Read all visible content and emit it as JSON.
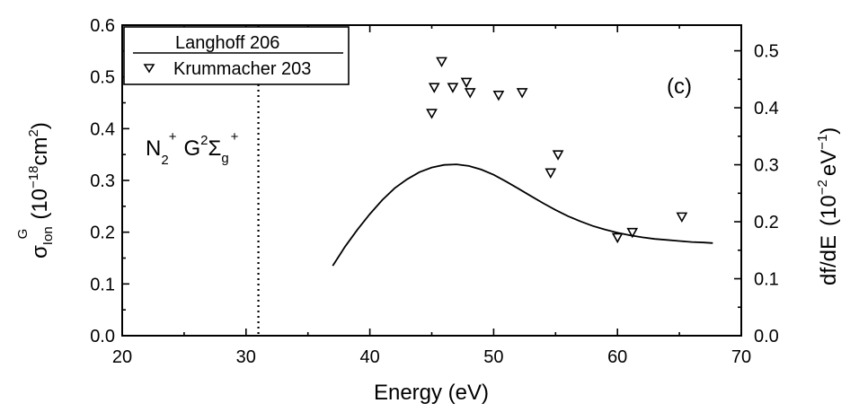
{
  "chart_data": {
    "type": "line",
    "panel_label": "(c)",
    "annotation": {
      "species": "N",
      "species_sub": "2",
      "species_sup": "+",
      "state": "G",
      "state_sup": "2",
      "state_sym": "Σ",
      "state_sub": "g",
      "state_sup2": "+"
    },
    "xlabel": "Energy (eV)",
    "ylabel_left": {
      "sigma": "σ",
      "sigma_sub": "Ion",
      "sigma_sup": "G",
      "units_pre": "(10",
      "units_exp": "−18",
      "units_mid": "cm",
      "units_exp2": "2",
      "units_post": ")"
    },
    "ylabel_right": {
      "text": "df/dE",
      "units_pre": "(10",
      "units_exp": "−2",
      "units_mid": "eV",
      "units_exp2": "−1",
      "units_post": ")"
    },
    "xlim": [
      20,
      70
    ],
    "ylim_left": [
      0,
      0.6
    ],
    "ylim_right": [
      0,
      0.545
    ],
    "x_ticks": [
      "20",
      "30",
      "40",
      "50",
      "60",
      "70"
    ],
    "y_ticks_left": [
      "0.0",
      "0.1",
      "0.2",
      "0.3",
      "0.4",
      "0.5",
      "0.6"
    ],
    "y_ticks_right": [
      "0.0",
      "0.1",
      "0.2",
      "0.3",
      "0.4",
      "0.5"
    ],
    "threshold_x": 31,
    "grid": false,
    "legend_position": "top-left",
    "series": [
      {
        "name": "Langhoff 206",
        "style": "solid-line",
        "x": [
          37,
          38,
          39,
          40,
          41,
          42,
          43,
          44,
          45,
          46,
          47,
          48,
          49,
          50,
          51,
          52,
          53,
          54,
          55,
          56,
          57,
          58,
          59,
          60,
          61,
          62,
          63,
          64,
          65,
          66,
          67,
          67.7
        ],
        "y": [
          0.135,
          0.172,
          0.205,
          0.235,
          0.262,
          0.285,
          0.302,
          0.316,
          0.325,
          0.33,
          0.331,
          0.328,
          0.321,
          0.311,
          0.298,
          0.284,
          0.27,
          0.256,
          0.243,
          0.231,
          0.221,
          0.212,
          0.205,
          0.199,
          0.194,
          0.19,
          0.187,
          0.185,
          0.183,
          0.181,
          0.18,
          0.179
        ]
      },
      {
        "name": "Krummacher 203",
        "style": "open-triangle-down",
        "x": [
          45.0,
          45.2,
          45.8,
          46.7,
          47.8,
          48.1,
          50.4,
          52.3,
          54.6,
          55.2,
          60.0,
          61.2,
          65.2
        ],
        "y": [
          0.43,
          0.48,
          0.53,
          0.48,
          0.49,
          0.47,
          0.465,
          0.47,
          0.315,
          0.35,
          0.19,
          0.2,
          0.23
        ]
      }
    ]
  }
}
